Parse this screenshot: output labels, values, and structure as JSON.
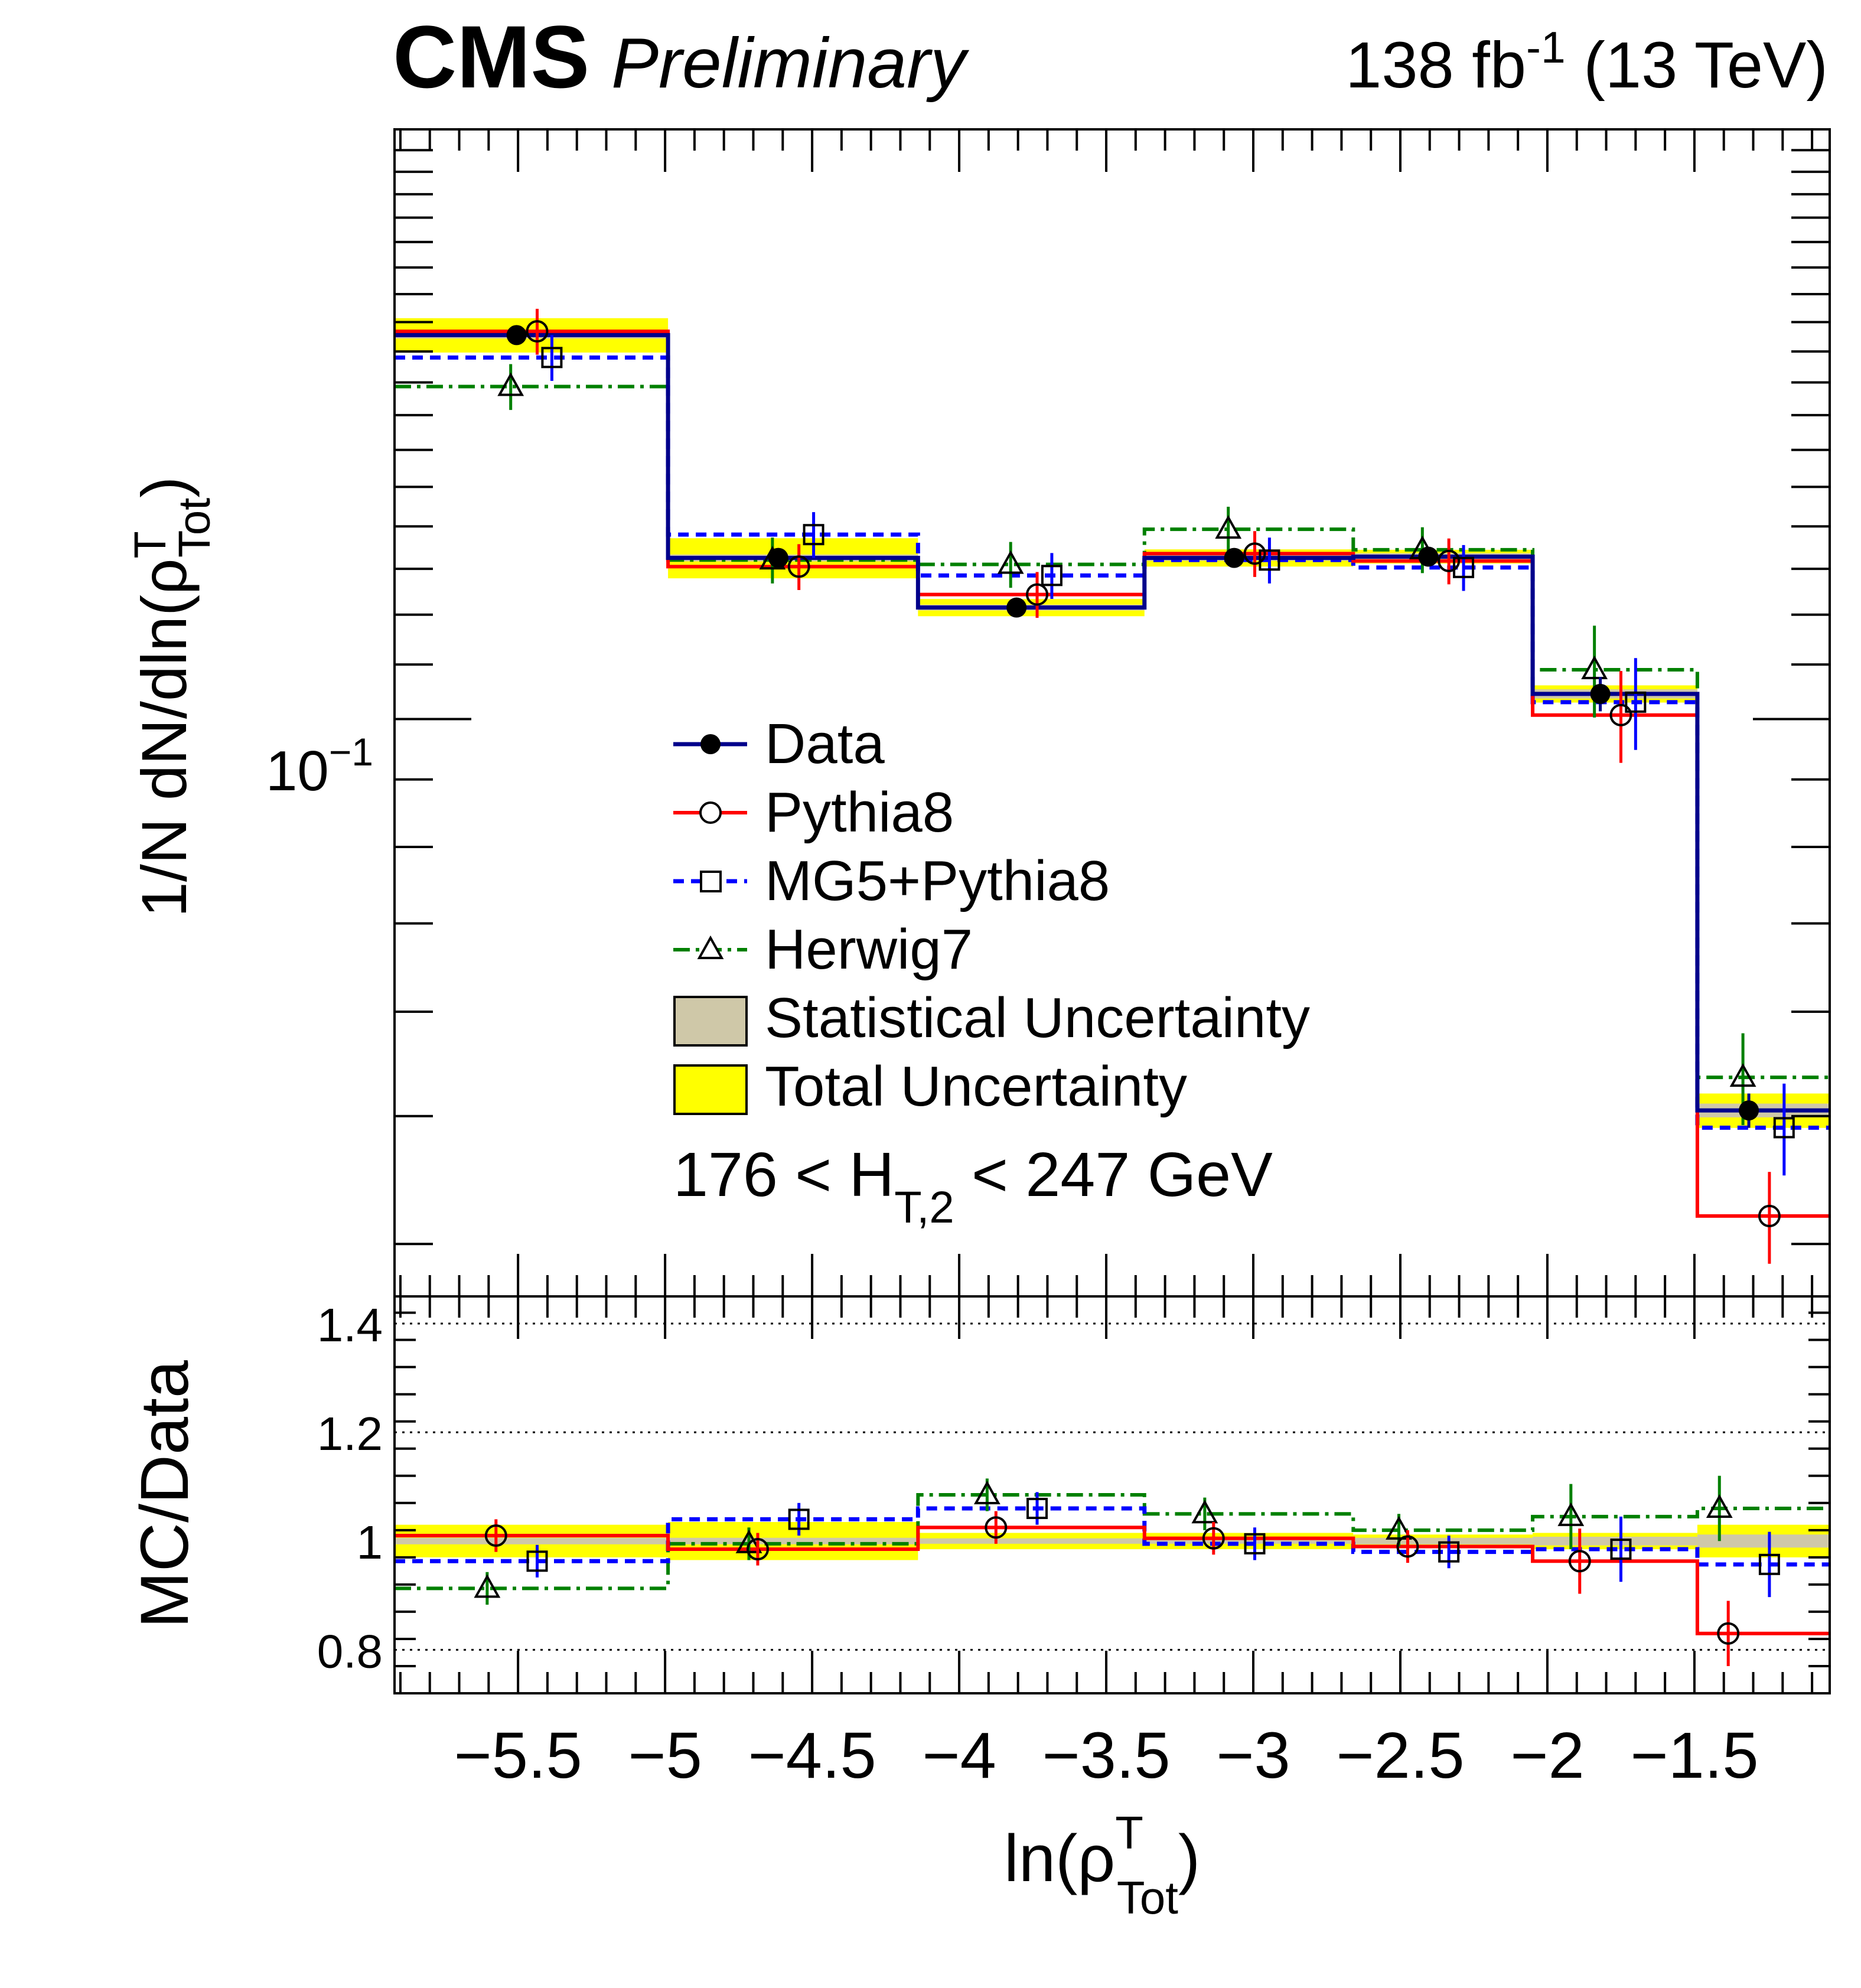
{
  "header": {
    "experiment": "CMS",
    "status": "Preliminary",
    "lumi_value": "138 fb",
    "lumi_exp": "-1",
    "energy": " (13 TeV)"
  },
  "chart_data": {
    "type": "line",
    "binning": "step histogram",
    "x_edges": [
      -5.92,
      -4.99,
      -4.14,
      -3.37,
      -2.66,
      -2.05,
      -1.49,
      -1.04
    ],
    "xlim": [
      -5.92,
      -1.04
    ],
    "xlabel": "ln(ρ",
    "xlabel_sup": "T",
    "xlabel_sub": "Tot",
    "xlabel_tail": ")",
    "x_ticks": [
      -5.5,
      -5,
      -4.5,
      -4,
      -3.5,
      -3,
      -2.5,
      -2,
      -1.5
    ],
    "x_tick_labels": [
      "−5.5",
      "−5",
      "−4.5",
      "−4",
      "−3.5",
      "−3",
      "−2.5",
      "−2",
      "−1.5"
    ],
    "top_panel": {
      "yscale": "log",
      "ylim": [
        0.0365,
        0.28
      ],
      "ylabel": "1/N dN/dln(ρ",
      "ylabel_sup": "T",
      "ylabel_sub": "Tot",
      "ylabel_tail": ")",
      "y_tick_base": "10",
      "y_tick_exp": "−1",
      "annotation_pre": "176 < H",
      "annotation_sub": "T,2",
      "annotation_post": " < 247 GeV",
      "legend": {
        "data": "Data",
        "pythia": "Pythia8",
        "mg5": "MG5+Pythia8",
        "herwig": "Herwig7",
        "stat": "Statistical Uncertainty",
        "total": "Total Uncertainty"
      },
      "legend_position": "center",
      "series": [
        {
          "name": "Data",
          "color": "#00008b",
          "values": [
            0.1955,
            0.1325,
            0.1215,
            0.1325,
            0.1328,
            0.1045,
            0.0505
          ]
        },
        {
          "name": "Pythia8",
          "color": "#ff0000",
          "values": [
            0.1968,
            0.1305,
            0.1243,
            0.1335,
            0.1318,
            0.1007,
            0.042
          ]
        },
        {
          "name": "MG5+Pythia8",
          "color": "#0000ff",
          "values": [
            0.188,
            0.138,
            0.1285,
            0.132,
            0.1303,
            0.103,
            0.049
          ]
        },
        {
          "name": "Herwig7",
          "color": "#008000",
          "values": [
            0.1787,
            0.132,
            0.131,
            0.1393,
            0.1344,
            0.109,
            0.0535
          ]
        }
      ],
      "total_unc_frac": [
        0.03,
        0.035,
        0.015,
        0.015,
        0.012,
        0.015,
        0.03
      ],
      "stat_unc_frac": [
        0.006,
        0.006,
        0.005,
        0.005,
        0.006,
        0.008,
        0.012
      ]
    },
    "ratio_panel": {
      "ylabel": "MC/Data",
      "ylim": [
        0.72,
        1.45
      ],
      "y_ticks": [
        0.8,
        1,
        1.2,
        1.4
      ],
      "y_tick_labels": [
        "0.8",
        "1",
        "1.2",
        "1.4"
      ],
      "gridlines": [
        0.8,
        1.2,
        1.4
      ],
      "series": [
        {
          "name": "Pythia8",
          "values": [
            1.01,
            0.985,
            1.025,
            1.005,
            0.99,
            0.963,
            0.83
          ]
        },
        {
          "name": "MG5+Pythia8",
          "values": [
            0.963,
            1.04,
            1.06,
            0.995,
            0.98,
            0.985,
            0.957
          ]
        },
        {
          "name": "Herwig7",
          "values": [
            0.913,
            0.995,
            1.085,
            1.05,
            1.02,
            1.045,
            1.06
          ]
        }
      ]
    }
  },
  "colors": {
    "data": "#000000",
    "data_line": "#00008b",
    "pythia": "#ff0000",
    "mg5": "#0000ff",
    "herwig": "#008000",
    "stat_band": "#cfc8a8",
    "total_band": "#ffff00"
  }
}
